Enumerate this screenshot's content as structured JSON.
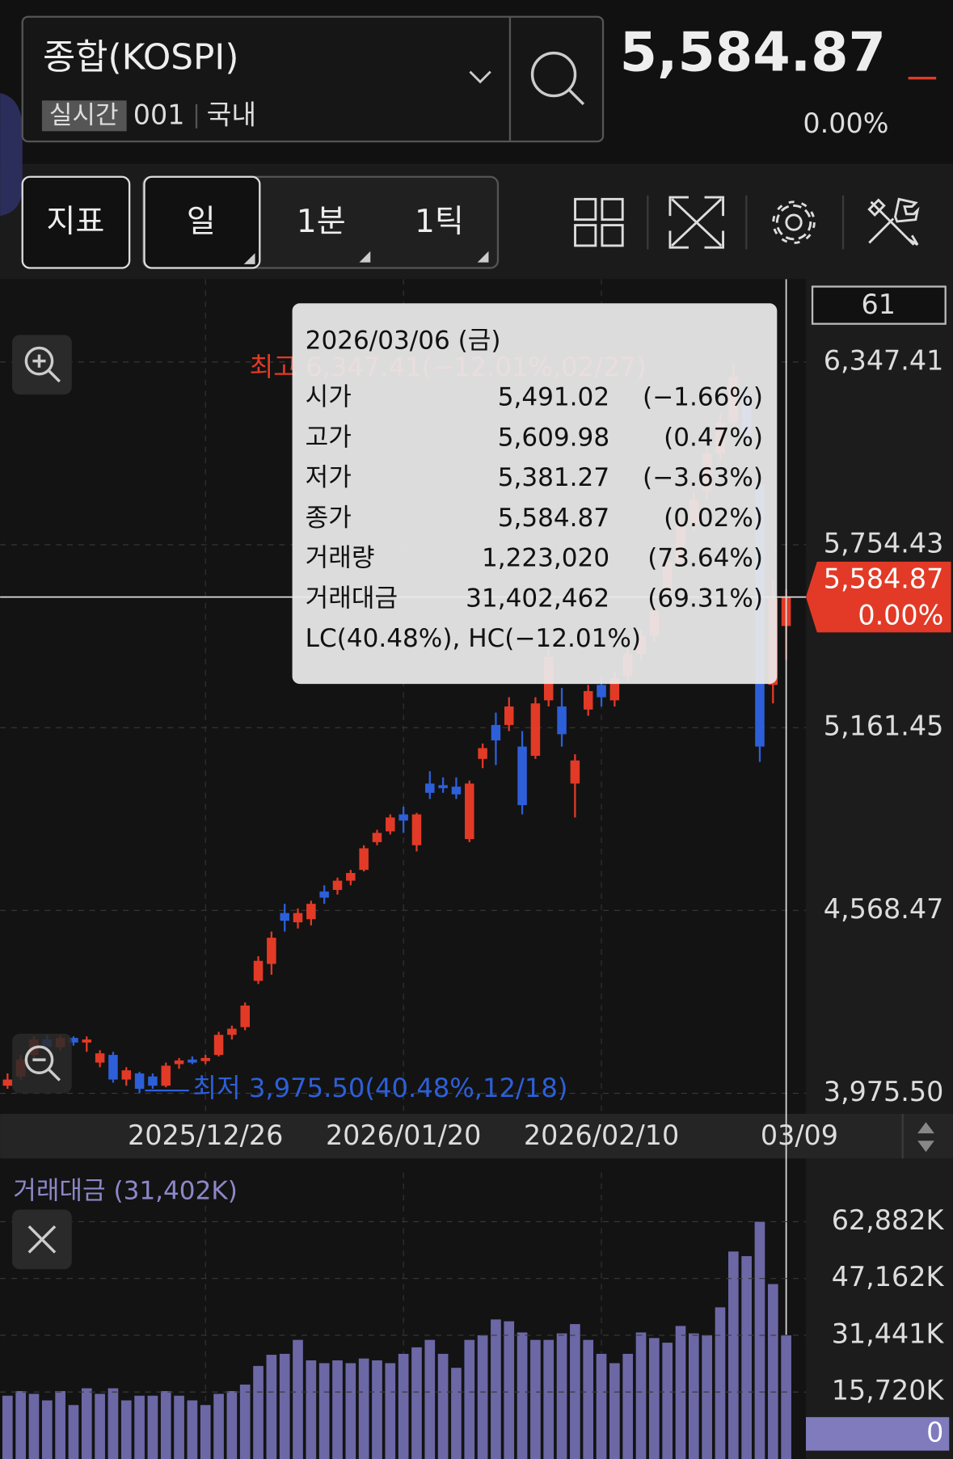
{
  "header": {
    "symbol": "종합(KOSPI)",
    "badge": "실시간",
    "code": "001",
    "market": "국내",
    "price": "5,584.87",
    "change": "0.00%"
  },
  "toolbar": {
    "buttons": [
      "지표",
      "일",
      "1분",
      "1틱"
    ]
  },
  "tooltip": {
    "date": "2026/03/06 (금)",
    "rows": [
      {
        "label": "시가",
        "value": "5,491.02",
        "change": "(−1.66%)"
      },
      {
        "label": "고가",
        "value": "5,609.98",
        "change": "(0.47%)"
      },
      {
        "label": "저가",
        "value": "5,381.27",
        "change": "(−3.63%)"
      },
      {
        "label": "종가",
        "value": "5,584.87",
        "change": "(0.02%)"
      },
      {
        "label": "거래량",
        "value": "1,223,020",
        "change": "(73.64%)"
      },
      {
        "label": "거래대금",
        "value": "31,402,462",
        "change": "(69.31%)"
      }
    ],
    "footer": "LC(40.48%), HC(−12.01%)"
  },
  "chart_data": [
    {
      "type": "candlestick",
      "cursor_label": "61",
      "last_label": "5,584.87",
      "last_change": "0.00%",
      "annotations": [
        "최고 6,347.41(−12.01%,02/27)",
        "최저 3,975.50(40.48%,12/18)"
      ],
      "up_color": "#e23a26",
      "down_color": "#2d5fd8",
      "grid": true,
      "categories": [
        null,
        null,
        null,
        null,
        null,
        null,
        null,
        null,
        null,
        null,
        null,
        null,
        null,
        null,
        null,
        "2025/12/26",
        null,
        null,
        null,
        null,
        null,
        null,
        null,
        null,
        null,
        null,
        null,
        null,
        null,
        null,
        "2026/01/20",
        null,
        null,
        null,
        null,
        null,
        null,
        null,
        null,
        null,
        null,
        null,
        null,
        null,
        null,
        "2026/02/10",
        null,
        null,
        null,
        null,
        null,
        null,
        null,
        null,
        null,
        null,
        null,
        null,
        null,
        null,
        "03/09"
      ],
      "open": [
        4000,
        4030,
        4100,
        4150,
        4125,
        4155,
        4140,
        4075,
        4100,
        4020,
        4040,
        4030,
        4000,
        4070,
        4085,
        4080,
        4100,
        4165,
        4190,
        4340,
        4395,
        4560,
        4530,
        4540,
        4630,
        4635,
        4665,
        4700,
        4790,
        4825,
        4880,
        4780,
        4980,
        4975,
        4970,
        4800,
        5060,
        5170,
        5170,
        5100,
        5070,
        5250,
        5230,
        4980,
        5220,
        5300,
        5250,
        5330,
        5400,
        5460,
        5600,
        5700,
        5820,
        5930,
        6050,
        6150,
        6240,
        5950,
        5300,
        5491.02,
        null
      ],
      "high": [
        4040,
        4100,
        4160,
        4165,
        4165,
        4160,
        4160,
        4115,
        4110,
        4060,
        4045,
        4040,
        4075,
        4090,
        4095,
        4100,
        4175,
        4195,
        4270,
        4420,
        4500,
        4590,
        4575,
        4600,
        4650,
        4675,
        4700,
        4780,
        4830,
        4880,
        4905,
        4885,
        5020,
        5000,
        5000,
        4990,
        5110,
        5210,
        5260,
        5150,
        5260,
        5420,
        5290,
        5075,
        5300,
        5330,
        5340,
        5420,
        5480,
        5560,
        5720,
        5850,
        5930,
        6080,
        6180,
        6347.41,
        6270,
        6000,
        5640,
        5609.98,
        null
      ],
      "low": [
        3990,
        4020,
        4090,
        4110,
        4115,
        4130,
        4110,
        4060,
        4010,
        4000,
        3975.5,
        3990,
        3995,
        4055,
        4070,
        4070,
        4095,
        4150,
        4180,
        4330,
        4360,
        4500,
        4510,
        4520,
        4590,
        4620,
        4650,
        4695,
        4780,
        4815,
        4820,
        4760,
        4930,
        4950,
        4930,
        4790,
        5030,
        5040,
        5150,
        4880,
        5060,
        5230,
        5100,
        4870,
        5200,
        5230,
        5230,
        5310,
        5380,
        5440,
        5580,
        5680,
        5800,
        5900,
        6030,
        6120,
        6080,
        5050,
        5240,
        5381.27,
        null
      ],
      "close": [
        4020,
        4085,
        4150,
        4125,
        4155,
        4140,
        4150,
        4105,
        4020,
        4050,
        3990,
        4000,
        4065,
        4082,
        4075,
        4090,
        4165,
        4185,
        4260,
        4405,
        4480,
        4535,
        4560,
        4590,
        4610,
        4665,
        4690,
        4770,
        4820,
        4870,
        4860,
        4880,
        4950,
        4965,
        4945,
        4980,
        5095,
        5120,
        5230,
        4910,
        5240,
        5390,
        5140,
        5055,
        5280,
        5260,
        5320,
        5400,
        5460,
        5540,
        5700,
        5820,
        5900,
        6050,
        6150,
        6300,
        6110,
        5100,
        5580,
        5584.87,
        null
      ],
      "ylim": [
        3915,
        6616
      ],
      "yticks": [
        {
          "value": 3975.5,
          "label": "3,975.50"
        },
        {
          "value": 4568.47,
          "label": "4,568.47"
        },
        {
          "value": 5161.45,
          "label": "5,161.45"
        },
        {
          "value": 5754.43,
          "label": "5,754.43"
        },
        {
          "value": 6347.41,
          "label": "6,347.41"
        }
      ]
    },
    {
      "type": "bar",
      "title": "거래대금 (31,402K)",
      "color": "#6c68a6",
      "values": [
        14689,
        15977,
        15204,
        13400,
        15977,
        12112,
        16750,
        15204,
        16750,
        13400,
        14689,
        14689,
        15977,
        14689,
        13400,
        12112,
        15204,
        15977,
        17781,
        22935,
        26028,
        26285,
        30151,
        24482,
        23708,
        24482,
        23708,
        24997,
        24482,
        23708,
        26285,
        28089,
        30151,
        26285,
        22420,
        30151,
        31439,
        35820,
        35305,
        32212,
        30151,
        30151,
        31955,
        34532,
        30151,
        26285,
        23708,
        26285,
        32212,
        30666,
        29378,
        34016,
        31955,
        31439,
        39170,
        54632,
        53344,
        62882,
        45613,
        31402,
        null
      ],
      "ylim": [
        0,
        76540
      ],
      "yticks": [
        0,
        {
          "value": 15720,
          "label": "15,720K"
        },
        {
          "value": 31441,
          "label": "31,441K"
        },
        {
          "value": 47162,
          "label": "47,162K"
        },
        {
          "value": 62882,
          "label": "62,882K"
        }
      ]
    }
  ]
}
